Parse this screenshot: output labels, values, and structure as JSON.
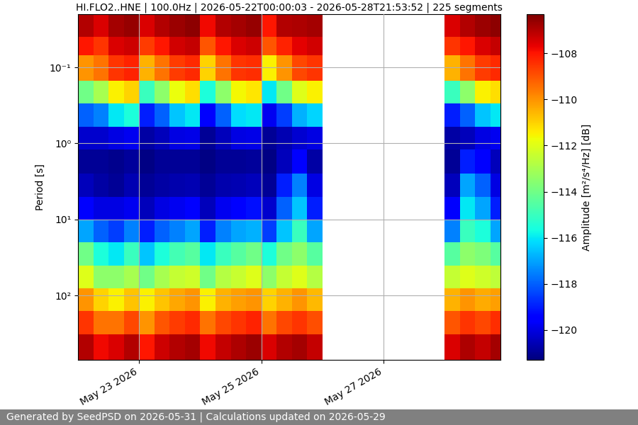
{
  "chart_data": {
    "type": "heatmap",
    "title": "HI.FLO2..HNE | 100.0Hz | 2026-05-22T00:00:03 - 2026-05-28T21:53:52 | 225 segments",
    "y_label": "Period [s]",
    "footer": "Generated by SeedPSD on 2026-05-31 | Calculations updated on 2026-05-29",
    "color": "jet",
    "log": "y",
    "grid": true,
    "xlim": [
      "2026-05-22T00:00:03",
      "2026-05-28T21:53:52"
    ],
    "xticks": [
      {
        "value": "2026-05-23",
        "label": "May 23 2026"
      },
      {
        "value": "2026-05-25",
        "label": "May 25 2026"
      },
      {
        "value": "2026-05-27",
        "label": "May 27 2026"
      }
    ],
    "ylim": [
      700,
      0.02
    ],
    "yticks": [
      {
        "value": 0.1,
        "label": "10⁻¹"
      },
      {
        "value": 1,
        "label": "10⁰"
      },
      {
        "value": 10,
        "label": "10¹"
      },
      {
        "value": 100,
        "label": "10²"
      }
    ],
    "x_edges": [
      "2026-05-22T00:00",
      "2026-05-22T06:00",
      "2026-05-22T12:00",
      "2026-05-22T18:00",
      "2026-05-23T00:00",
      "2026-05-23T06:00",
      "2026-05-23T12:00",
      "2026-05-23T18:00",
      "2026-05-24T00:00",
      "2026-05-24T06:00",
      "2026-05-24T12:00",
      "2026-05-24T18:00",
      "2026-05-25T00:00",
      "2026-05-25T06:00",
      "2026-05-25T12:00",
      "2026-05-25T18:00",
      "2026-05-26T00:00",
      "2026-05-26T06:00",
      "2026-05-26T12:00",
      "2026-05-26T18:00",
      "2026-05-27T00:00",
      "2026-05-27T06:00",
      "2026-05-27T12:00",
      "2026-05-27T18:00",
      "2026-05-28T00:00",
      "2026-05-28T06:00",
      "2026-05-28T12:00",
      "2026-05-28T18:00",
      "2026-05-29T00:00"
    ],
    "y_edges": [
      0.02,
      0.04,
      0.07,
      0.15,
      0.3,
      0.6,
      1.2,
      2.5,
      5,
      10,
      20,
      40,
      80,
      160,
      320,
      700
    ],
    "cells": [
      [
        -107,
        -107.5,
        -106.8,
        -106.6,
        -107.5,
        -107,
        -106.7,
        -106.5,
        -107.8,
        -107,
        -106.8,
        -106.6,
        -108,
        -107,
        -106.9,
        -106.8,
        null,
        null,
        null,
        null,
        null,
        null,
        null,
        null,
        -107.5,
        -107,
        -106.7,
        -106.5
      ],
      [
        -108,
        -108.5,
        -107.5,
        -107.3,
        -108.6,
        -108,
        -107.4,
        -107.2,
        -109,
        -108,
        -107.5,
        -107.3,
        -109,
        -108.2,
        -107.6,
        -107.4,
        null,
        null,
        null,
        null,
        null,
        null,
        null,
        null,
        -108.5,
        -108,
        -107.5,
        -107.2
      ],
      [
        -110,
        -109.5,
        -108.5,
        -108.2,
        -110.5,
        -109.5,
        -108.6,
        -108.3,
        -111,
        -109.5,
        -108.5,
        -108.4,
        -111.5,
        -110,
        -108.8,
        -108.5,
        null,
        null,
        null,
        null,
        null,
        null,
        null,
        null,
        -110.5,
        -109.5,
        -108.6,
        -108.3
      ],
      [
        -114,
        -113,
        -111.5,
        -111,
        -115,
        -113.5,
        -111.8,
        -111.2,
        -115.5,
        -113.5,
        -111.6,
        -111.3,
        -116,
        -114,
        -112,
        -111.5,
        null,
        null,
        null,
        null,
        null,
        null,
        null,
        null,
        -115,
        -113.5,
        -111.5,
        -111.2
      ],
      [
        -118,
        -117.5,
        -116,
        -115.5,
        -119,
        -118,
        -116.5,
        -116,
        -119.5,
        -118,
        -116.2,
        -116,
        -119.8,
        -118.5,
        -116.8,
        -116.3,
        null,
        null,
        null,
        null,
        null,
        null,
        null,
        null,
        -119,
        -118,
        -116.5,
        -116
      ],
      [
        -120.3,
        -120.3,
        -120,
        -119.8,
        -120.8,
        -120.5,
        -120,
        -119.9,
        -121,
        -120.5,
        -120,
        -119.9,
        -121,
        -120.6,
        -120.2,
        -120,
        null,
        null,
        null,
        null,
        null,
        null,
        null,
        null,
        -120.8,
        -120.5,
        -120,
        -119.8
      ],
      [
        -121,
        -121,
        -121.1,
        -120.9,
        -121.2,
        -121,
        -121,
        -121,
        -121.2,
        -121,
        -121,
        -120.9,
        -121.2,
        -120.5,
        -119.5,
        -120.8,
        null,
        null,
        null,
        null,
        null,
        null,
        null,
        null,
        -121,
        -119,
        -119.5,
        -120.5
      ],
      [
        -120.5,
        -120.8,
        -121,
        -120.6,
        -121,
        -120.8,
        -120.7,
        -120.6,
        -121,
        -120.7,
        -120.6,
        -120.5,
        -121,
        -119,
        -117.5,
        -120,
        null,
        null,
        null,
        null,
        null,
        null,
        null,
        null,
        -120.5,
        -117,
        -118,
        -120
      ],
      [
        -119.5,
        -120,
        -120,
        -119.8,
        -120.5,
        -120,
        -119.8,
        -119.5,
        -120.5,
        -119.8,
        -119.5,
        -119.2,
        -120.3,
        -118,
        -116.5,
        -119,
        null,
        null,
        null,
        null,
        null,
        null,
        null,
        null,
        -119.5,
        -116,
        -117,
        -119
      ],
      [
        -117,
        -118,
        -118.5,
        -117.5,
        -119,
        -118,
        -117.5,
        -117,
        -119,
        -117.5,
        -117,
        -116.8,
        -118.5,
        -116.5,
        -115,
        -117,
        null,
        null,
        null,
        null,
        null,
        null,
        null,
        null,
        -117.5,
        -115,
        -115.5,
        -117
      ],
      [
        -114,
        -115.5,
        -116,
        -115,
        -116.5,
        -115.5,
        -114.8,
        -114.5,
        -116,
        -115,
        -114.5,
        -114,
        -115.5,
        -114,
        -113.5,
        -114.5,
        null,
        null,
        null,
        null,
        null,
        null,
        null,
        null,
        -114.5,
        -113.5,
        -113.8,
        -114.5
      ],
      [
        -112,
        -113.5,
        -113.5,
        -113,
        -114,
        -113,
        -112.5,
        -112.3,
        -114,
        -112.8,
        -112.4,
        -112,
        -113.5,
        -112.5,
        -112,
        -112.8,
        null,
        null,
        null,
        null,
        null,
        null,
        null,
        null,
        -112.5,
        -112,
        -112.3,
        -112.6
      ],
      [
        -110,
        -111,
        -111.5,
        -110.8,
        -111.5,
        -110.8,
        -110.3,
        -110,
        -111.5,
        -110.5,
        -110.2,
        -110,
        -111,
        -110.5,
        -110,
        -110.6,
        null,
        null,
        null,
        null,
        null,
        null,
        null,
        null,
        -110.5,
        -110,
        -110.4,
        -110.2
      ],
      [
        -108.5,
        -109.5,
        -109.5,
        -108.8,
        -110,
        -109,
        -108.6,
        -108.3,
        -109.5,
        -108.8,
        -108.5,
        -108.2,
        -109.5,
        -108.8,
        -108.5,
        -108.9,
        null,
        null,
        null,
        null,
        null,
        null,
        null,
        null,
        -109,
        -108.5,
        -108.8,
        -108.4
      ],
      [
        -107,
        -107.8,
        -107.5,
        -107,
        -108,
        -107.3,
        -107,
        -106.8,
        -107.8,
        -107.2,
        -106.9,
        -106.7,
        -107.5,
        -107,
        -106.8,
        -107.2,
        null,
        null,
        null,
        null,
        null,
        null,
        null,
        null,
        -107.5,
        -106.9,
        -107.2,
        -106.8
      ]
    ],
    "colorbar": {
      "label": "Amplitude [m²/s⁴/Hz] [dB]",
      "lim": [
        -121.3,
        -106.3
      ],
      "ticks": [
        {
          "value": -120,
          "label": "−120"
        },
        {
          "value": -118,
          "label": "−118"
        },
        {
          "value": -116,
          "label": "−116"
        },
        {
          "value": -114,
          "label": "−114"
        },
        {
          "value": -112,
          "label": "−112"
        },
        {
          "value": -110,
          "label": "−110"
        },
        {
          "value": -108,
          "label": "−108"
        }
      ]
    }
  }
}
